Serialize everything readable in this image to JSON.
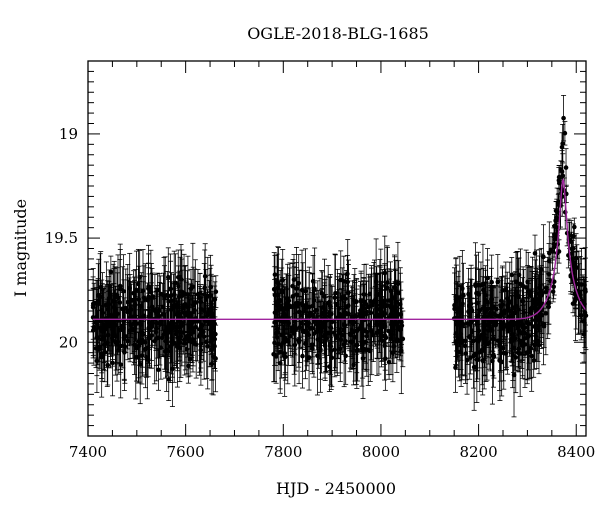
{
  "chart_data": {
    "type": "scatter",
    "title": "OGLE-2018-BLG-1685",
    "xlabel": "HJD - 2450000",
    "ylabel": "I magnitude",
    "xlim": [
      7400,
      8420
    ],
    "ylim": [
      20.45,
      18.65
    ],
    "y_inverted": true,
    "x_ticks": [
      7400,
      7600,
      7800,
      8000,
      8200,
      8400
    ],
    "x_tick_labels": [
      "7400",
      "7600",
      "7800",
      "8000",
      "8200",
      "8400"
    ],
    "y_ticks": [
      19,
      19.5,
      20
    ],
    "y_tick_labels": [
      "19",
      "19.5",
      "20"
    ],
    "grid": false,
    "series": [
      {
        "style": "points-with-errorbars",
        "color": "#000000",
        "seasons": [
          {
            "x_start": 7410,
            "x_end": 7665,
            "baseline_mag": 19.9,
            "scatter": 0.16,
            "typical_err": 0.15
          },
          {
            "x_start": 7780,
            "x_end": 8045,
            "baseline_mag": 19.9,
            "scatter": 0.16,
            "typical_err": 0.15
          },
          {
            "x_start": 8150,
            "x_end": 8420,
            "baseline_mag": 19.9,
            "scatter": 0.16,
            "typical_err": 0.15
          }
        ],
        "event": {
          "t0": 8373,
          "peak_mag": 19.15,
          "width_days": 16
        }
      },
      {
        "style": "line",
        "color": "#a0259e",
        "model": {
          "baseline_mag": 19.89,
          "t0": 8373,
          "peak_mag": 19.22,
          "width_days": 14
        }
      }
    ]
  }
}
